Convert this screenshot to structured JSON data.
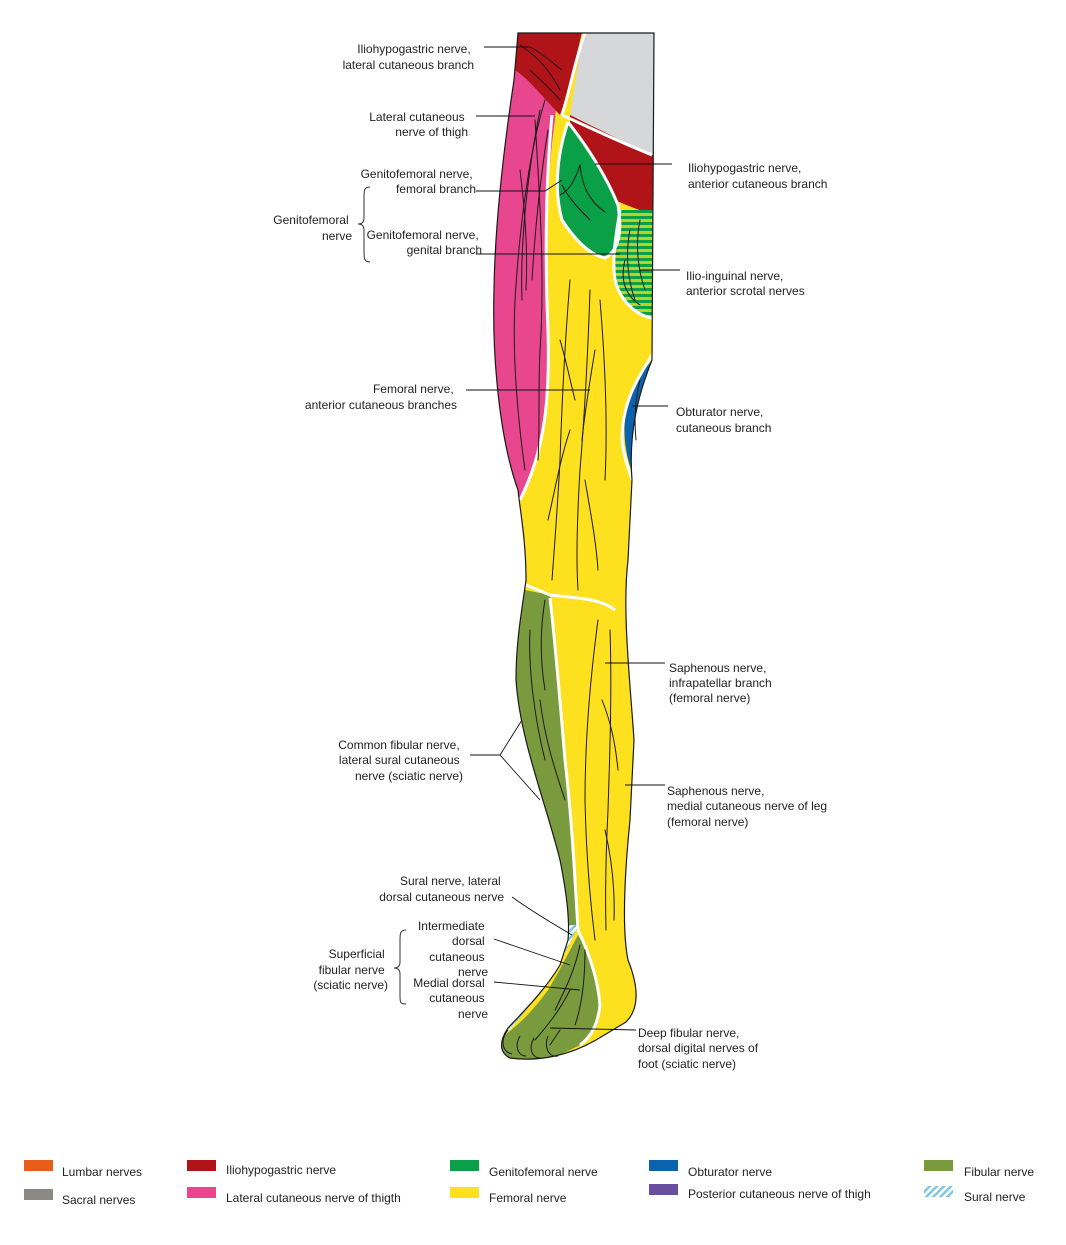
{
  "colors": {
    "lumbar": "#e85d1a",
    "sacral": "#8c8884",
    "iliohypogastric": "#b01418",
    "lateral_cutaneous": "#e8478f",
    "genitofemoral": "#0aa048",
    "femoral": "#fde01e",
    "obturator": "#0b63ae",
    "posterior_cutaneous": "#6a4e9e",
    "fibular": "#7a9a3e",
    "sural": "#7fc7e0",
    "gray_region": "#d6d7d9"
  },
  "labels": {
    "ilio_lat": [
      "Iliohypogastric nerve,",
      "lateral cutaneous branch"
    ],
    "lat_cut_thigh": [
      "Lateral cutaneous",
      "nerve of thigh"
    ],
    "genito_fem": [
      "Genitofemoral nerve,",
      "femoral branch"
    ],
    "genito_group": [
      "Genitofemoral",
      "nerve"
    ],
    "genito_gen": [
      "Genitofemoral nerve,",
      "genital branch"
    ],
    "femoral_ant": [
      "Femoral nerve,",
      "anterior cutaneous branches"
    ],
    "common_fib": [
      "Common fibular nerve,",
      "lateral sural cutaneous",
      "nerve (sciatic nerve)"
    ],
    "sural_lat": [
      "Sural nerve, lateral",
      "dorsal cutaneous nerve"
    ],
    "interm_dorsal": [
      "Intermediate",
      "dorsal",
      "cutaneous",
      "nerve"
    ],
    "sup_fib_group": [
      "Superficial",
      "fibular nerve",
      "(sciatic nerve)"
    ],
    "medial_dorsal": [
      "Medial dorsal",
      "cutaneous",
      "nerve"
    ],
    "ilio_ant": [
      "Iliohypogastric nerve,",
      "anterior cutaneous branch"
    ],
    "ilio_inguinal": [
      "Ilio-inguinal nerve,",
      "anterior scrotal nerves"
    ],
    "obturator": [
      "Obturator nerve,",
      "cutaneous branch"
    ],
    "saph_infra": [
      "Saphenous nerve,",
      "infrapatellar branch",
      "(femoral nerve)"
    ],
    "saph_medial": [
      "Saphenous nerve,",
      "medial cutaneous nerve of leg",
      "(femoral nerve)"
    ],
    "deep_fib": [
      "Deep fibular nerve,",
      "dorsal digital nerves of",
      "foot (sciatic nerve)"
    ]
  },
  "legend": [
    {
      "label": "Lumbar nerves",
      "color": "#e85d1a"
    },
    {
      "label": "Sacral nerves",
      "color": "#8c8884"
    },
    {
      "label": "Iliohypogastric nerve",
      "color": "#b01418"
    },
    {
      "label": "Lateral cutaneous nerve of thigth",
      "color": "#e8478f"
    },
    {
      "label": "Genitofemoral nerve",
      "color": "#0aa048"
    },
    {
      "label": "Femoral nerve",
      "color": "#fde01e"
    },
    {
      "label": "Obturator nerve",
      "color": "#0b63ae"
    },
    {
      "label": "Posterior cutaneous nerve of thigh",
      "color": "#6a4e9e"
    },
    {
      "label": "Fibular nerve",
      "color": "#7a9a3e"
    },
    {
      "label": "Sural nerve",
      "color": "#7fc7e0",
      "pattern": "hatched"
    }
  ]
}
